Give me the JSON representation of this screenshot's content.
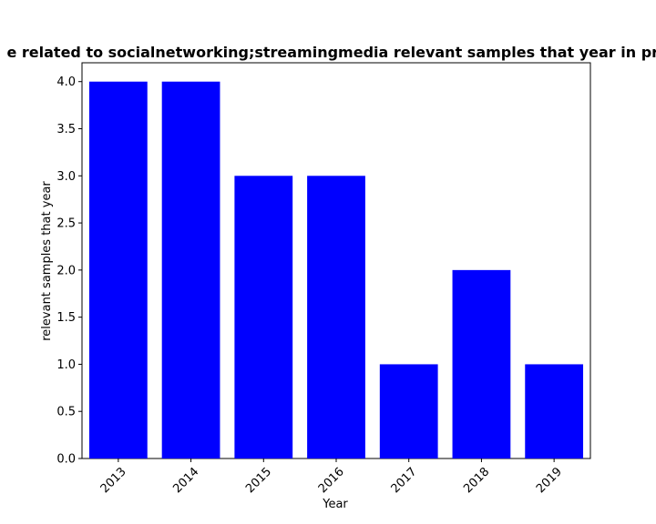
{
  "colors": {
    "bar": "#0000ff",
    "axis": "#000000",
    "background": "#ffffff"
  },
  "chart_data": {
    "type": "bar",
    "title": "e related to socialnetworking;streamingmedia relevant samples that year in pri",
    "xlabel": "Year",
    "ylabel": "relevant samples that year",
    "categories": [
      "2013",
      "2014",
      "2015",
      "2016",
      "2017",
      "2018",
      "2019"
    ],
    "values": [
      4,
      4,
      3,
      3,
      1,
      2,
      1
    ],
    "ylim": [
      0,
      4.2
    ],
    "yticks": [
      "0.0",
      "0.5",
      "1.0",
      "1.5",
      "2.0",
      "2.5",
      "3.0",
      "3.5",
      "4.0"
    ],
    "grid": false,
    "legend": "none"
  }
}
